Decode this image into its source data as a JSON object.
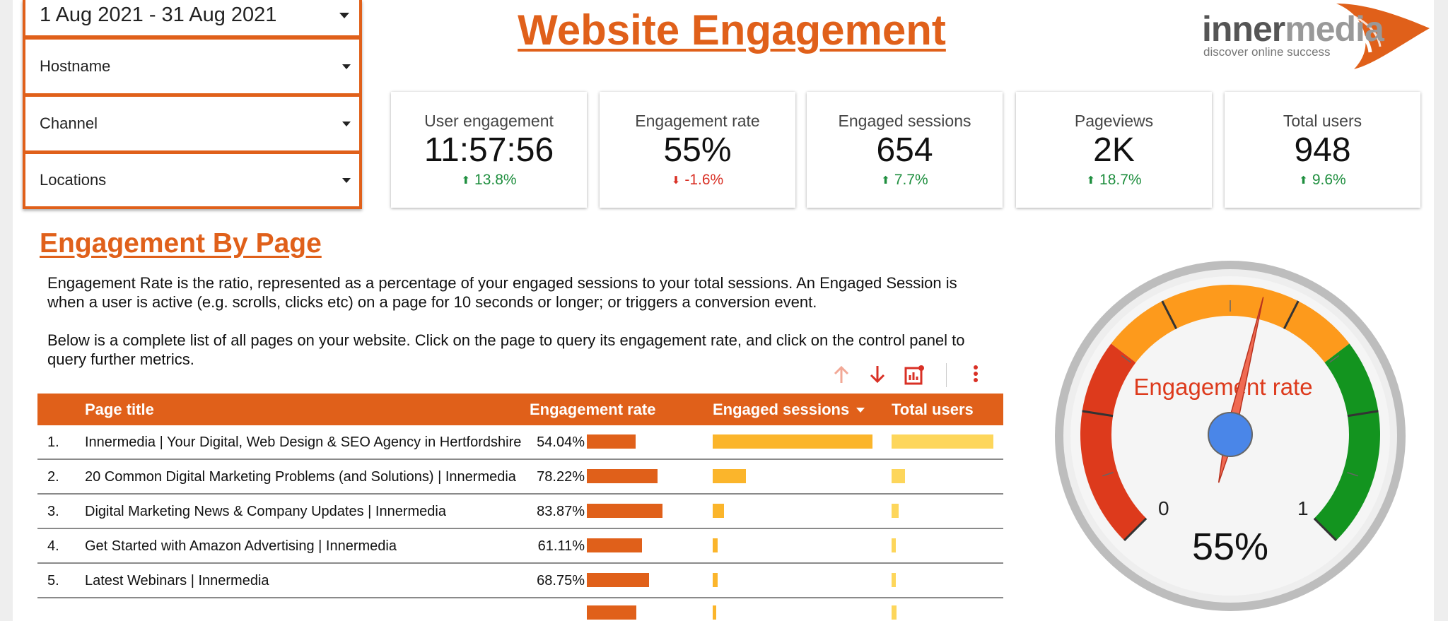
{
  "filters": {
    "date_range": "1 Aug 2021 - 31 Aug 2021",
    "hostname": "Hostname",
    "channel": "Channel",
    "locations": "Locations"
  },
  "header": {
    "title": "Website Engagement"
  },
  "logo": {
    "word_a": "inner",
    "word_b": "media",
    "tagline": "discover online success"
  },
  "kpis": [
    {
      "label": "User engagement",
      "value": "11:57:56",
      "delta": "13.8%",
      "direction": "up"
    },
    {
      "label": "Engagement rate",
      "value": "55%",
      "delta": "-1.6%",
      "direction": "down"
    },
    {
      "label": "Engaged sessions",
      "value": "654",
      "delta": "7.7%",
      "direction": "up"
    },
    {
      "label": "Pageviews",
      "value": "2K",
      "delta": "18.7%",
      "direction": "up"
    },
    {
      "label": "Total users",
      "value": "948",
      "delta": "9.6%",
      "direction": "up"
    }
  ],
  "section": {
    "title": "Engagement By Page",
    "desc1": "Engagement Rate is the ratio, represented as a percentage of your engaged sessions to your total sessions.  An Engaged Session is when a user is active (e.g. scrolls, clicks etc) on a page for 10 seconds or longer; or triggers a conversion event.",
    "desc2": "Below is a complete list of all pages on your website. Click on the page to query its engagement rate, and click on the control panel to query further metrics."
  },
  "table": {
    "columns": {
      "page_title": "Page title",
      "engagement_rate": "Engagement rate",
      "engaged_sessions": "Engaged sessions",
      "total_users": "Total users"
    },
    "sorted_column": "engaged_sessions",
    "rows": [
      {
        "num": "1.",
        "title": "Innermedia | Your Digital, Web Design & SEO Agency in Hertfordshire",
        "rate": "54.04%",
        "rate_value": 0.5404,
        "sessions_fraction": 1.0,
        "users_fraction": 1.0
      },
      {
        "num": "2.",
        "title": "20 Common Digital Marketing Problems (and Solutions) | Innermedia",
        "rate": "78.22%",
        "rate_value": 0.7822,
        "sessions_fraction": 0.21,
        "users_fraction": 0.13
      },
      {
        "num": "3.",
        "title": "Digital Marketing News & Company Updates | Innermedia",
        "rate": "83.87%",
        "rate_value": 0.8387,
        "sessions_fraction": 0.07,
        "users_fraction": 0.07
      },
      {
        "num": "4.",
        "title": "Get Started with Amazon Advertising | Innermedia",
        "rate": "61.11%",
        "rate_value": 0.6111,
        "sessions_fraction": 0.03,
        "users_fraction": 0.04
      },
      {
        "num": "5.",
        "title": "Latest Webinars | Innermedia",
        "rate": "68.75%",
        "rate_value": 0.6875,
        "sessions_fraction": 0.03,
        "users_fraction": 0.04
      }
    ],
    "partial_row": {
      "rate_value": 0.55,
      "sessions_fraction": 0.02,
      "users_fraction": 0.05
    }
  },
  "gauge": {
    "label": "Engagement rate",
    "value": 0.55,
    "value_text": "55%",
    "min_label": "0",
    "max_label": "1"
  },
  "colors": {
    "brand": "#e0601a",
    "bar_sessions": "#fbb52b",
    "bar_users": "#fdd65b",
    "up": "#1e8e3e",
    "down": "#d93025",
    "gauge_red": "#dd3a1c",
    "gauge_orange": "#fd9a1c",
    "gauge_green": "#13941f",
    "gauge_center": "#4a86e8"
  },
  "icons": {
    "toolbar": [
      "sort-ascending-icon",
      "sort-descending-icon",
      "chart-settings-icon",
      "more-vertical-icon"
    ]
  }
}
